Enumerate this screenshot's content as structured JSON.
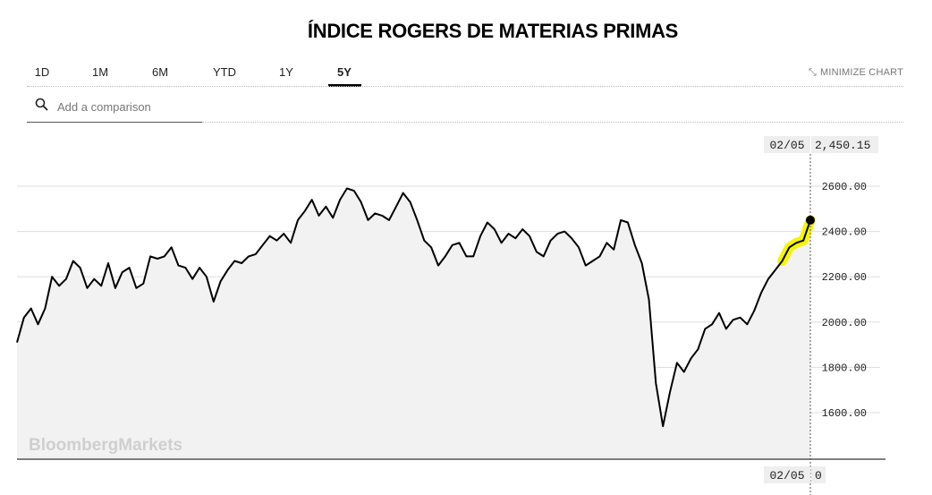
{
  "title": "ÍNDICE ROGERS DE  MATERIAS PRIMAS",
  "tabs": [
    {
      "label": "1D",
      "active": false
    },
    {
      "label": "1M",
      "active": false
    },
    {
      "label": "6M",
      "active": false
    },
    {
      "label": "YTD",
      "active": false
    },
    {
      "label": "1Y",
      "active": false
    },
    {
      "label": "5Y",
      "active": true
    }
  ],
  "minimize_label": "MINIMIZE CHART",
  "search": {
    "placeholder": "Add a comparison"
  },
  "watermark": "BloombergMarkets",
  "cursor": {
    "date": "02/05",
    "value": "2,450.15",
    "bottom_date": "02/05",
    "bottom_value": "0"
  },
  "colors": {
    "line": "#000000",
    "area": "#f2f2f2",
    "highlight": "#f5f500",
    "grid": "#dddddd"
  },
  "chart_data": {
    "type": "area",
    "title": "",
    "xlabel": "",
    "ylabel": "",
    "ylim": [
      1440,
      2620
    ],
    "yticks": [
      1600,
      1800,
      2000,
      2200,
      2400,
      2600
    ],
    "ytick_labels": [
      "1600.00",
      "1800.00",
      "2000.00",
      "2200.00",
      "2400.00",
      "2600.00"
    ],
    "x_axis": "5 years of trading sessions, evenly spaced; last point 02/05",
    "series": [
      {
        "values": [
          1910,
          2020,
          2060,
          1990,
          2060,
          2200,
          2160,
          2190,
          2270,
          2240,
          2150,
          2190,
          2160,
          2260,
          2150,
          2220,
          2240,
          2150,
          2170,
          2290,
          2280,
          2290,
          2330,
          2250,
          2240,
          2190,
          2240,
          2200,
          2090,
          2180,
          2230,
          2270,
          2260,
          2290,
          2300,
          2340,
          2380,
          2360,
          2390,
          2350,
          2450,
          2490,
          2540,
          2470,
          2510,
          2460,
          2540,
          2590,
          2580,
          2530,
          2450,
          2480,
          2470,
          2450,
          2510,
          2570,
          2530,
          2450,
          2360,
          2330,
          2250,
          2290,
          2340,
          2350,
          2290,
          2290,
          2380,
          2440,
          2410,
          2350,
          2390,
          2370,
          2410,
          2380,
          2310,
          2290,
          2360,
          2390,
          2400,
          2370,
          2330,
          2250,
          2270,
          2290,
          2350,
          2320,
          2450,
          2440,
          2340,
          2260,
          2100,
          1730,
          1540,
          1690,
          1820,
          1780,
          1840,
          1880,
          1970,
          1990,
          2040,
          1970,
          2010,
          2020,
          1990,
          2050,
          2130,
          2190,
          2230,
          2270,
          2330,
          2350,
          2360,
          2450.15
        ]
      }
    ]
  }
}
